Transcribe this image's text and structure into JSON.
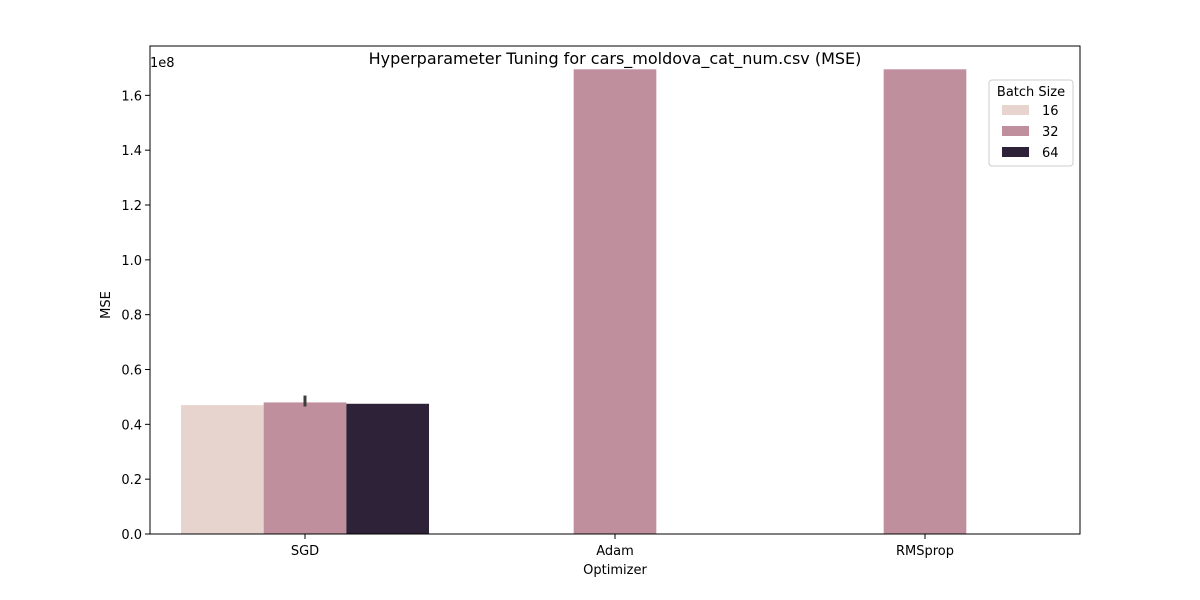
{
  "chart_data": {
    "type": "bar",
    "title": "Hyperparameter Tuning for cars_moldova_cat_num.csv (MSE)",
    "xlabel": "Optimizer",
    "ylabel": "MSE",
    "offset_label": "1e8",
    "categories": [
      "SGD",
      "Adam",
      "RMSprop"
    ],
    "ylim": [
      0,
      1.78
    ],
    "yticks": [
      "0.0",
      "0.2",
      "0.4",
      "0.6",
      "0.8",
      "1.0",
      "1.2",
      "1.4",
      "1.6"
    ],
    "legend": {
      "title": "Batch Size",
      "position": "top-right"
    },
    "series": [
      {
        "name": "16",
        "color": "#e8d4cf",
        "values": [
          0.47,
          null,
          null
        ]
      },
      {
        "name": "32",
        "color": "#c08f9e",
        "values": [
          0.48,
          1.695,
          1.695
        ],
        "error_bars": [
          [
            0.465,
            0.505
          ],
          null,
          null
        ]
      },
      {
        "name": "64",
        "color": "#2e2239",
        "values": [
          0.475,
          null,
          null
        ]
      }
    ],
    "grid": false
  }
}
